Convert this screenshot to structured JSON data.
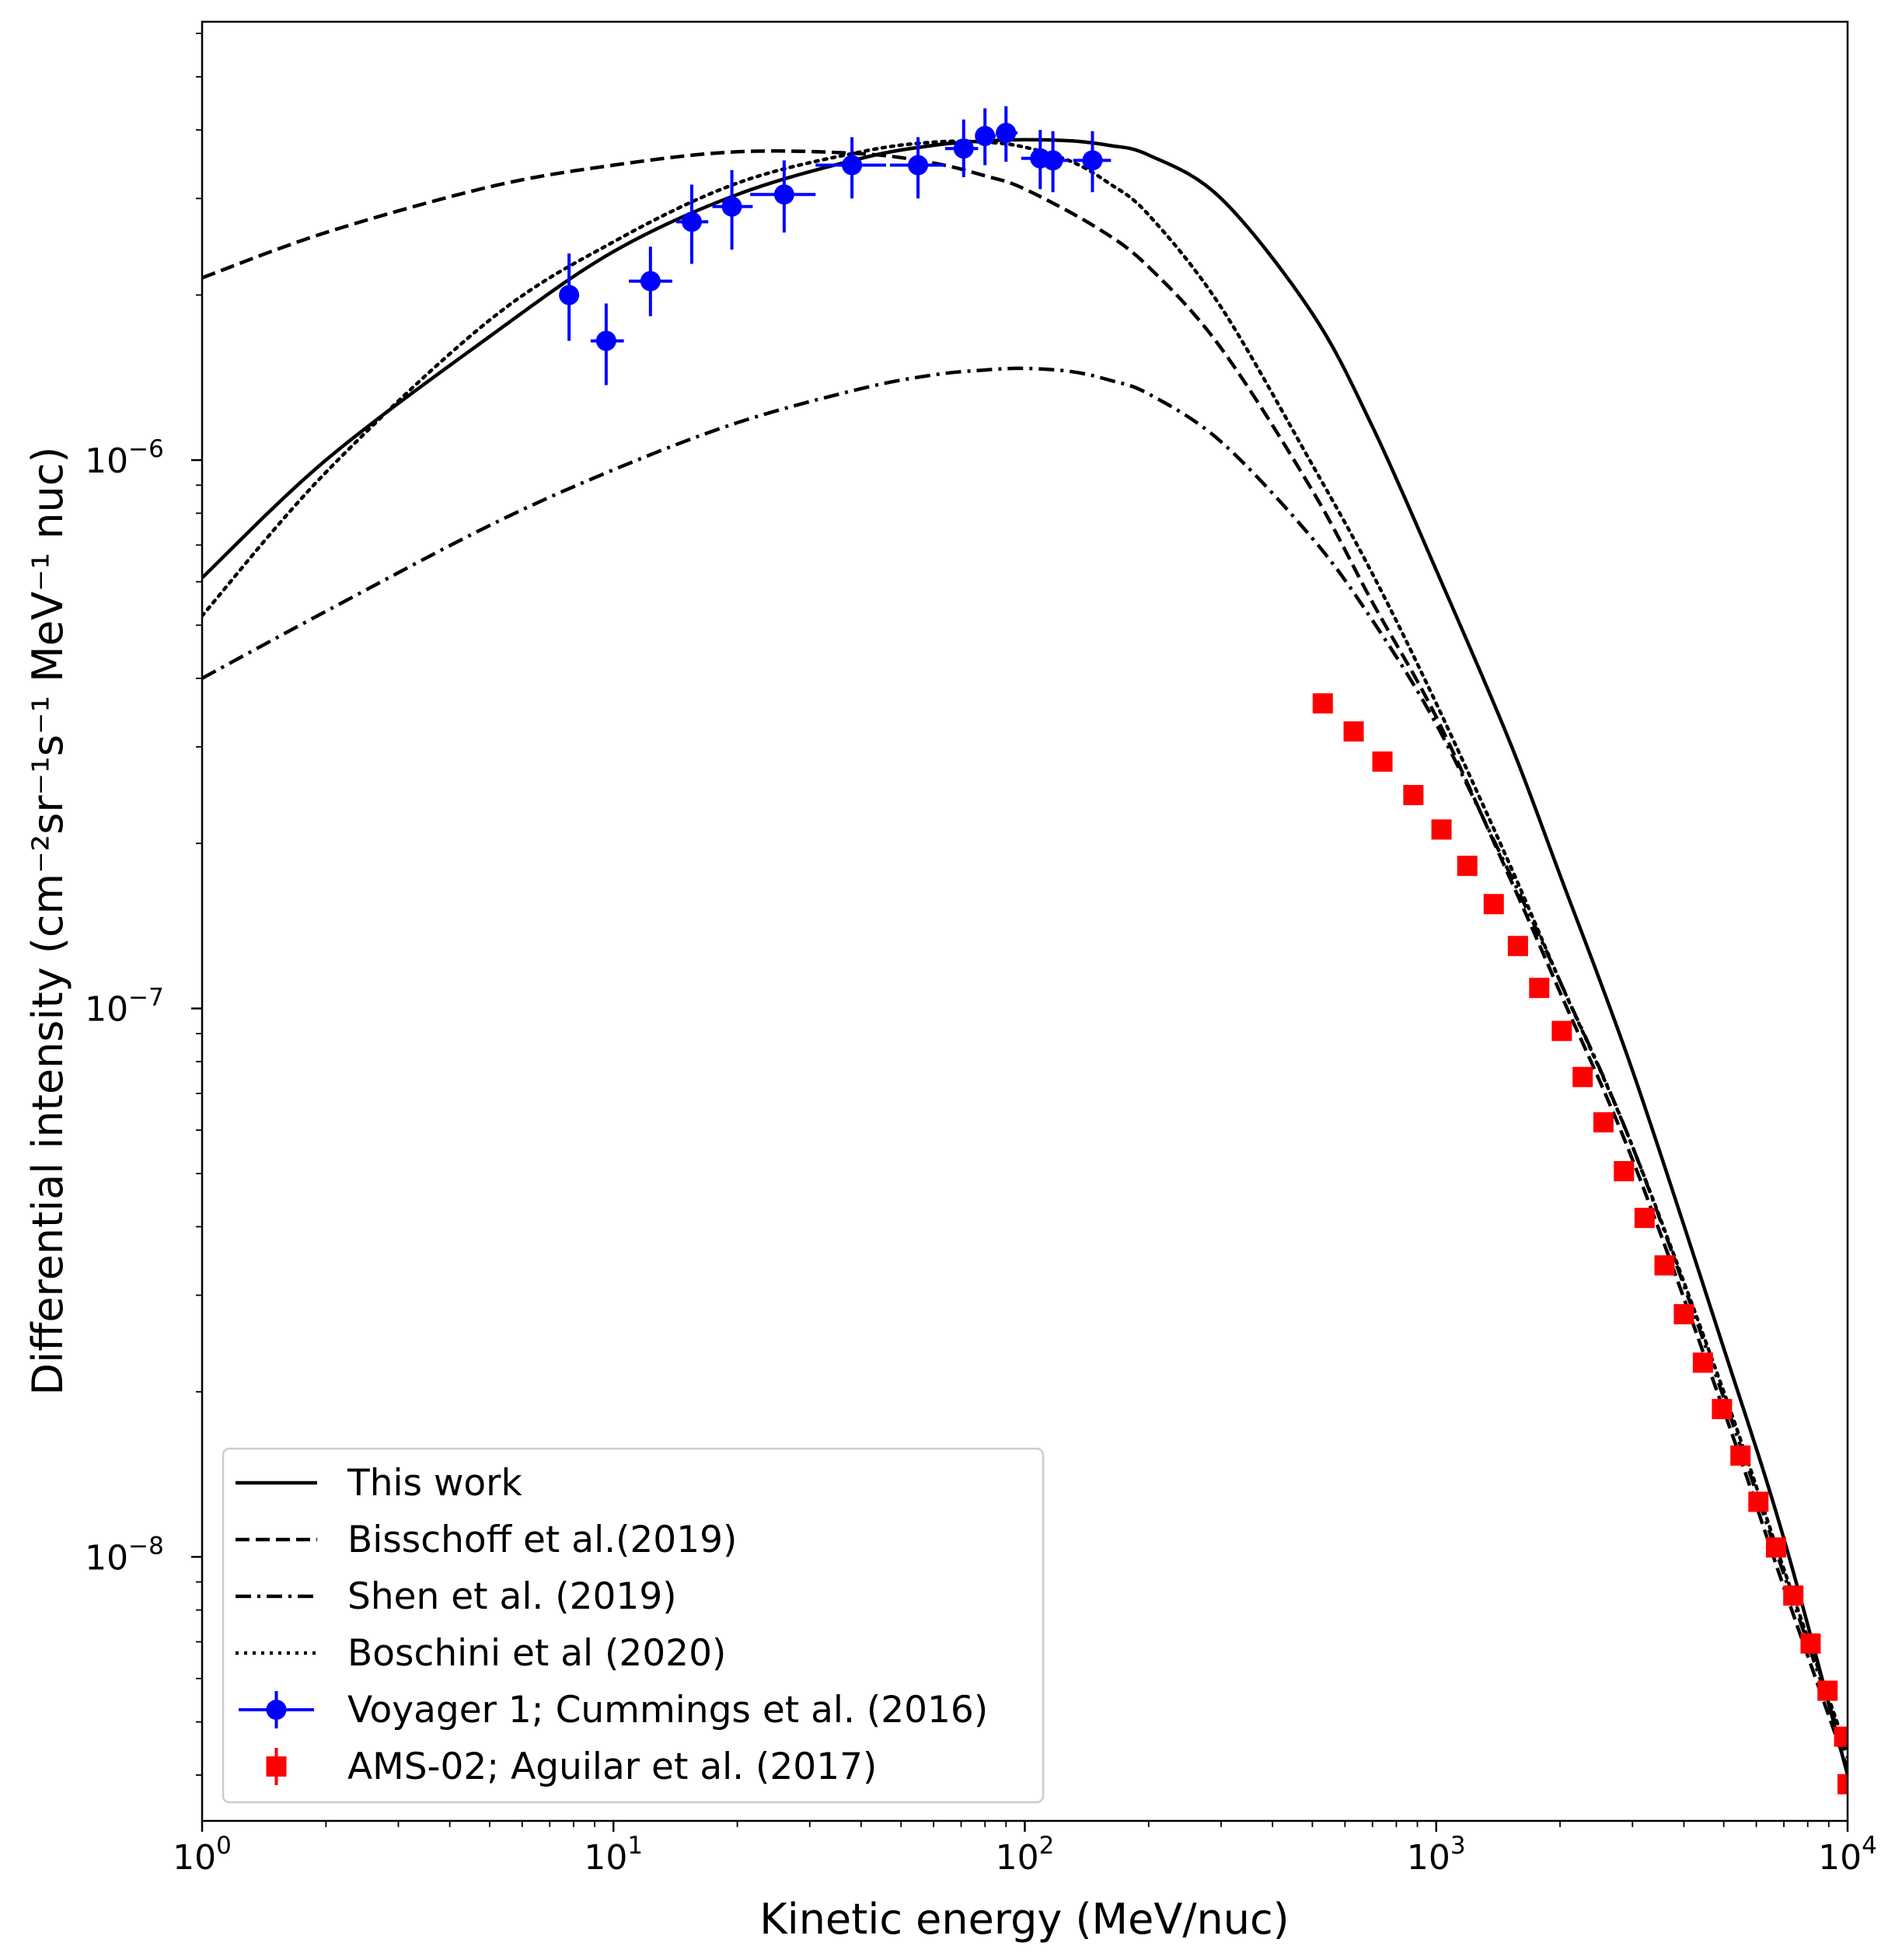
{
  "chart_data": {
    "type": "line",
    "title": "",
    "xlabel": "Kinetic energy (MeV/nuc)",
    "ylabel": "Differential intensity (cm⁻²sr⁻¹s⁻¹ MeV⁻¹ nuc)",
    "xscale": "log",
    "yscale": "log",
    "xlim": [
      1,
      10000
    ],
    "ylim": [
      3.3e-09,
      6.3e-06
    ],
    "grid": false,
    "legend_position": "lower-left",
    "x_ticks": [
      {
        "value": 1,
        "base": "10",
        "exp": "0"
      },
      {
        "value": 10,
        "base": "10",
        "exp": "1"
      },
      {
        "value": 100,
        "base": "10",
        "exp": "2"
      },
      {
        "value": 1000,
        "base": "10",
        "exp": "3"
      },
      {
        "value": 10000,
        "base": "10",
        "exp": "4"
      }
    ],
    "y_ticks": [
      {
        "value": 1e-08,
        "base": "10",
        "exp": "−8"
      },
      {
        "value": 1e-07,
        "base": "10",
        "exp": "−7"
      },
      {
        "value": 1e-06,
        "base": "10",
        "exp": "−6"
      }
    ],
    "series": [
      {
        "name": "This work",
        "kind": "line",
        "style": "solid",
        "color": "#000000",
        "x": [
          1,
          2,
          5,
          10,
          20,
          40,
          60,
          80,
          100,
          130,
          160,
          200,
          300,
          500,
          700,
          1000,
          1500,
          2000,
          3000,
          5000,
          7000,
          10000
        ],
        "y": [
          6.1e-07,
          1e-06,
          1.68e-06,
          2.4e-06,
          3.05e-06,
          3.55e-06,
          3.75e-06,
          3.82e-06,
          3.84e-06,
          3.82e-06,
          3.75e-06,
          3.6e-06,
          3e-06,
          1.85e-06,
          1.15e-06,
          6.3e-07,
          3.1e-07,
          1.75e-07,
          7.7e-08,
          2.4e-08,
          1.08e-08,
          4e-09
        ]
      },
      {
        "name": "Bisschoff et al.(2019)",
        "kind": "line",
        "style": "dashed",
        "color": "#000000",
        "x": [
          1,
          2,
          5,
          10,
          20,
          40,
          60,
          80,
          100,
          150,
          200,
          300,
          500,
          700,
          1000,
          1500,
          2000,
          3000,
          5000,
          7000,
          10000
        ],
        "y": [
          2.15e-06,
          2.6e-06,
          3.15e-06,
          3.45e-06,
          3.65e-06,
          3.62e-06,
          3.48e-06,
          3.3e-06,
          3.12e-06,
          2.65e-06,
          2.25e-06,
          1.6e-06,
          8.8e-07,
          5.5e-07,
          3.4e-07,
          1.75e-07,
          1.07e-07,
          5.3e-08,
          1.85e-08,
          8.8e-09,
          4.1e-09
        ]
      },
      {
        "name": "Shen et al. (2019)",
        "kind": "line",
        "style": "dashdot",
        "color": "#000000",
        "x": [
          1,
          2,
          5,
          10,
          20,
          40,
          60,
          80,
          100,
          130,
          160,
          200,
          300,
          500,
          700,
          1000,
          1500,
          2000,
          3000,
          5000,
          7000,
          10000
        ],
        "y": [
          4e-07,
          5.3e-07,
          7.6e-07,
          9.6e-07,
          1.17e-06,
          1.35e-06,
          1.43e-06,
          1.46e-06,
          1.47e-06,
          1.45e-06,
          1.4e-06,
          1.32e-06,
          1.08e-06,
          7.2e-07,
          5.1e-07,
          3.3e-07,
          1.78e-07,
          1.12e-07,
          5.6e-08,
          1.95e-08,
          9.3e-09,
          4.3e-09
        ]
      },
      {
        "name": "Boschini et al (2020)",
        "kind": "line",
        "style": "dotted",
        "color": "#000000",
        "x": [
          1,
          2,
          5,
          10,
          20,
          40,
          60,
          80,
          100,
          130,
          160,
          200,
          300,
          500,
          700,
          1000,
          1500,
          2000,
          3000,
          5000,
          7000,
          10000
        ],
        "y": [
          5.2e-07,
          9.5e-07,
          1.8e-06,
          2.5e-06,
          3.2e-06,
          3.65e-06,
          3.8e-06,
          3.8e-06,
          3.72e-06,
          3.5e-06,
          3.2e-06,
          2.8e-06,
          1.9e-06,
          9.8e-07,
          6.2e-07,
          3.6e-07,
          1.85e-07,
          1.12e-07,
          5.6e-08,
          2e-08,
          9.5e-09,
          4.4e-09
        ]
      },
      {
        "name": "Voyager 1; Cummings et al. (2016)",
        "kind": "errorbar",
        "marker": "circle",
        "color": "#0000ff",
        "x": [
          7.8,
          9.6,
          12.3,
          15.5,
          19.4,
          26.0,
          38.0,
          55.0,
          71.0,
          80.0,
          90.0,
          109.0,
          117.0,
          146.0
        ],
        "y": [
          2e-06,
          1.65e-06,
          2.12e-06,
          2.72e-06,
          2.9e-06,
          3.05e-06,
          3.45e-06,
          3.45e-06,
          3.7e-06,
          3.9e-06,
          3.95e-06,
          3.55e-06,
          3.52e-06,
          3.52e-06
        ],
        "y_low": [
          1.65e-06,
          1.37e-06,
          1.83e-06,
          2.28e-06,
          2.42e-06,
          2.6e-06,
          3e-06,
          3e-06,
          3.28e-06,
          3.45e-06,
          3.5e-06,
          3.12e-06,
          3.08e-06,
          3.08e-06
        ],
        "y_high": [
          2.38e-06,
          1.93e-06,
          2.45e-06,
          3.18e-06,
          3.38e-06,
          3.52e-06,
          3.88e-06,
          3.88e-06,
          4.18e-06,
          4.38e-06,
          4.42e-06,
          4e-06,
          3.98e-06,
          3.98e-06
        ],
        "x_low": [
          7.8,
          8.8,
          10.9,
          14.2,
          17.4,
          21.5,
          31.0,
          47.0,
          64.0,
          76.0,
          85.0,
          98.0,
          106.0,
          131.0
        ],
        "x_high": [
          7.8,
          10.6,
          13.9,
          17.0,
          21.8,
          31.0,
          46.0,
          64.0,
          77.0,
          85.0,
          96.0,
          117.0,
          128.0,
          162.0
        ]
      },
      {
        "name": "AMS-02; Aguilar et al. (2017)",
        "kind": "errorbar",
        "marker": "square",
        "color": "#ff0000",
        "x": [
          530,
          630,
          740,
          880,
          1030,
          1190,
          1380,
          1580,
          1780,
          2020,
          2270,
          2550,
          2860,
          3210,
          3590,
          4000,
          4450,
          4950,
          5490,
          6070,
          6700,
          7380,
          8130,
          8940,
          9810,
          10000
        ],
        "y": [
          3.6e-07,
          3.2e-07,
          2.82e-07,
          2.45e-07,
          2.12e-07,
          1.82e-07,
          1.55e-07,
          1.3e-07,
          1.09e-07,
          9.1e-08,
          7.5e-08,
          6.2e-08,
          5.05e-08,
          4.15e-08,
          3.4e-08,
          2.77e-08,
          2.26e-08,
          1.86e-08,
          1.53e-08,
          1.26e-08,
          1.04e-08,
          8.5e-09,
          6.95e-09,
          5.7e-09,
          4.7e-09,
          3.85e-09
        ]
      }
    ]
  }
}
